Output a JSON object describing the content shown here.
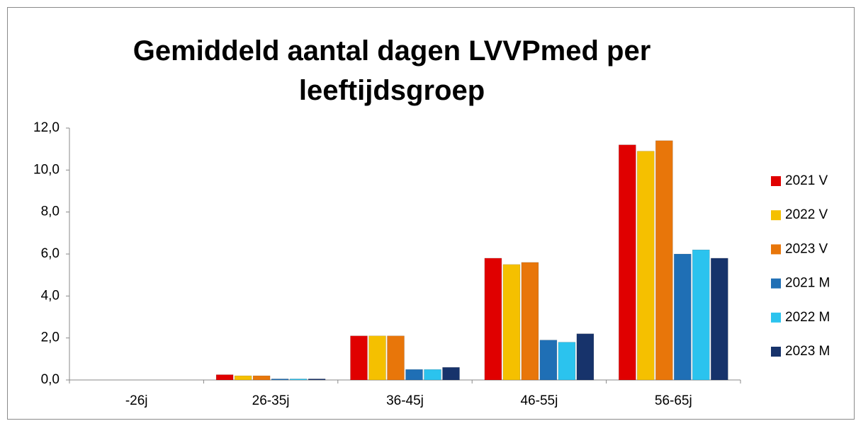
{
  "chart_data": {
    "type": "bar",
    "title": "Gemiddeld aantal dagen LVVPmed per leeftijdsgroep",
    "categories": [
      "-26j",
      "26-35j",
      "36-45j",
      "46-55j",
      "56-65j"
    ],
    "series": [
      {
        "name": "2021 V",
        "color": "#e00000",
        "values": [
          0,
          0.25,
          2.1,
          5.8,
          11.2
        ]
      },
      {
        "name": "2022 V",
        "color": "#f5c000",
        "values": [
          0,
          0.2,
          2.1,
          5.5,
          10.9
        ]
      },
      {
        "name": "2023 V",
        "color": "#e8760a",
        "values": [
          0,
          0.2,
          2.1,
          5.6,
          11.4
        ]
      },
      {
        "name": "2021 M",
        "color": "#1f6fb5",
        "values": [
          0,
          0.05,
          0.5,
          1.9,
          6.0
        ]
      },
      {
        "name": "2022 M",
        "color": "#2bc3ee",
        "values": [
          0,
          0.05,
          0.5,
          1.8,
          6.2
        ]
      },
      {
        "name": "2023 M",
        "color": "#17336b",
        "values": [
          0,
          0.05,
          0.6,
          2.2,
          5.8
        ]
      }
    ],
    "ylim": [
      0,
      12
    ],
    "yticks": [
      {
        "value": 0,
        "label": "0,0"
      },
      {
        "value": 2,
        "label": "2,0"
      },
      {
        "value": 4,
        "label": "4,0"
      },
      {
        "value": 6,
        "label": "6,0"
      },
      {
        "value": 8,
        "label": "8,0"
      },
      {
        "value": 10,
        "label": "10,0"
      },
      {
        "value": 12,
        "label": "12,0"
      }
    ],
    "grid": false,
    "legend": "right"
  }
}
